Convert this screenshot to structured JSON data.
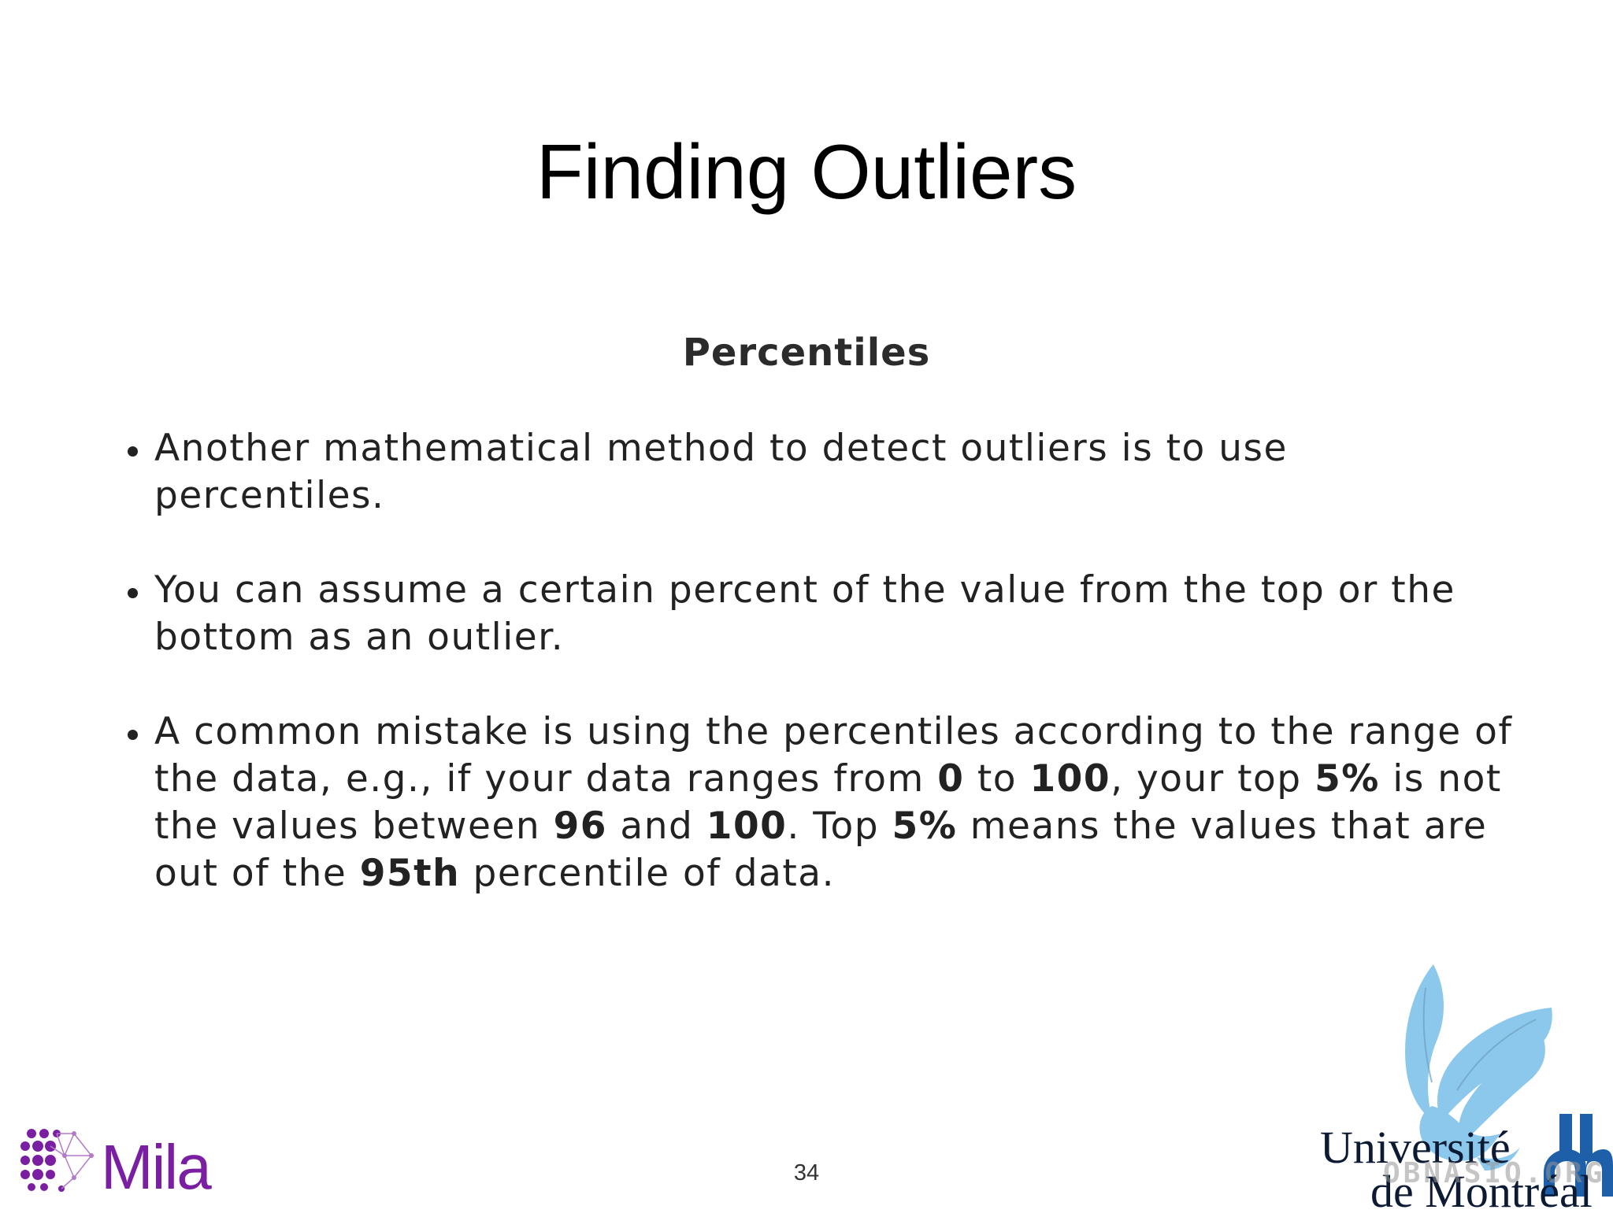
{
  "slide": {
    "title": "Finding Outliers",
    "subheading": "Percentiles",
    "page_number": "34"
  },
  "bullets": [
    {
      "segments": [
        {
          "text": "Another mathematical method to detect outliers is to use percentiles.",
          "bold": false
        }
      ]
    },
    {
      "segments": [
        {
          "text": "You can assume a certain percent of the value from the top or the bottom as an outlier.",
          "bold": false
        }
      ]
    },
    {
      "segments": [
        {
          "text": "A common mistake is using the percentiles according to the range of the data, e.g., if your data ranges from ",
          "bold": false
        },
        {
          "text": "0",
          "bold": true
        },
        {
          "text": " to ",
          "bold": false
        },
        {
          "text": "100",
          "bold": true
        },
        {
          "text": ", your top ",
          "bold": false
        },
        {
          "text": "5%",
          "bold": true
        },
        {
          "text": " is not the values between ",
          "bold": false
        },
        {
          "text": "96",
          "bold": true
        },
        {
          "text": " and ",
          "bold": false
        },
        {
          "text": "100",
          "bold": true
        },
        {
          "text": ". Top ",
          "bold": false
        },
        {
          "text": "5%",
          "bold": true
        },
        {
          "text": " means the values that are out of the ",
          "bold": false
        },
        {
          "text": "95th",
          "bold": true
        },
        {
          "text": " percentile of data.",
          "bold": false
        }
      ]
    }
  ],
  "logos": {
    "mila": {
      "text": "Mila",
      "color": "#7b1fa2"
    },
    "udem": {
      "line1": "Université",
      "line2": "de Montréal",
      "bird_color": "#8cc8ec",
      "text_color": "#0c1b33",
      "monogram_color": "#1d5fa8"
    },
    "watermark": "OBNASIO.ORG"
  },
  "colors": {
    "background": "#ffffff",
    "title": "#000000",
    "body_text": "#222222"
  }
}
